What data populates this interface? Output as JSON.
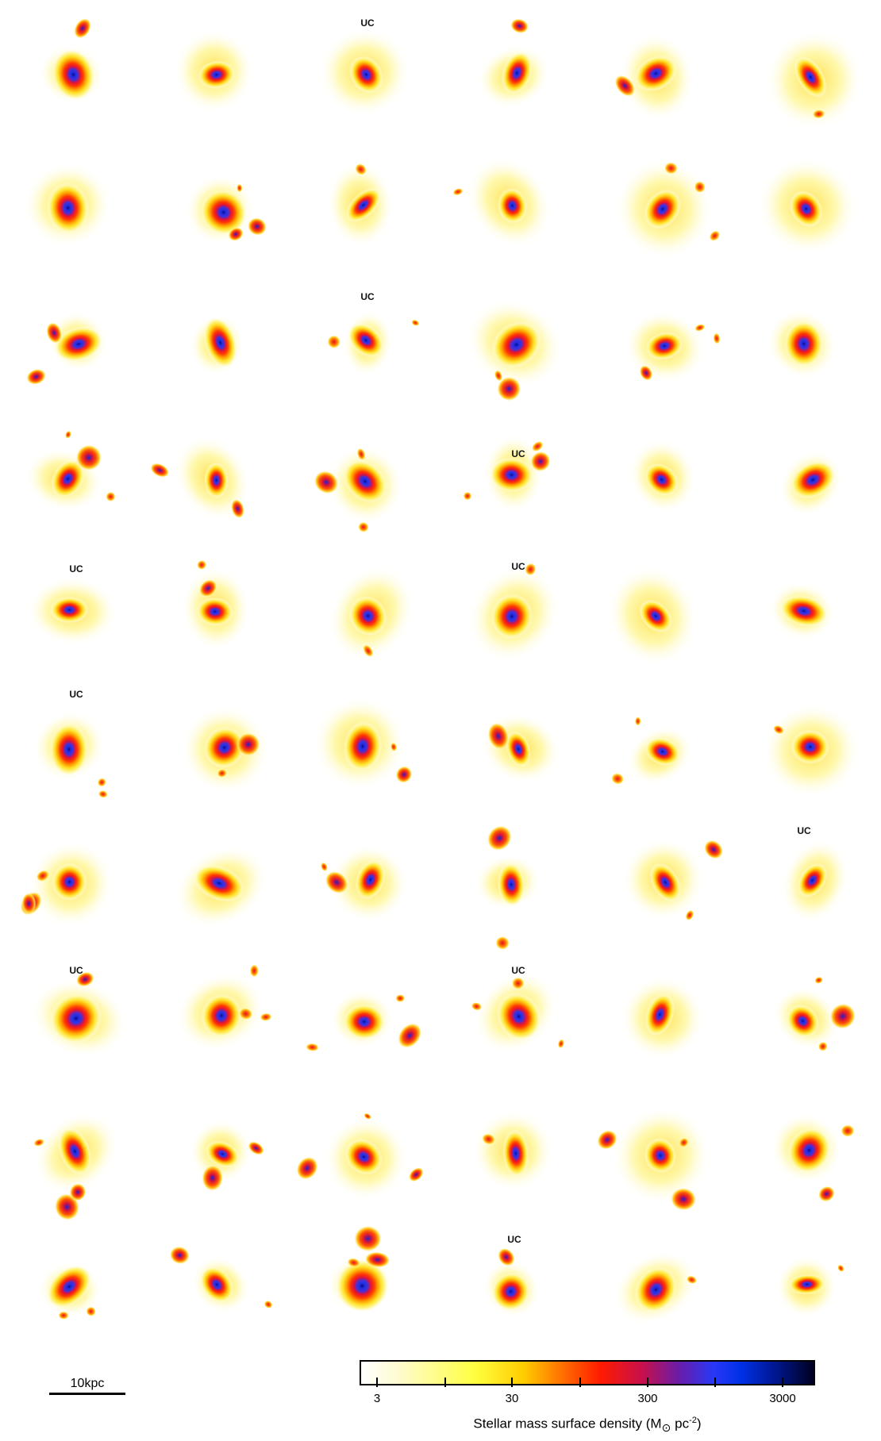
{
  "figure": {
    "uc_label": "UC",
    "scale_bar_label": "10kpc",
    "colorbar": {
      "ticks": [
        "3",
        "30",
        "300",
        "3000"
      ],
      "title_prefix": "Stellar mass surface density (M",
      "title_symbol": "⊙",
      "title_unit": " pc",
      "title_exponent": "-2",
      "title_suffix": ")",
      "colors": [
        "#ffffff",
        "#ffff40",
        "#ff6a00",
        "#ff1a00",
        "#6c1ca6",
        "#2838f8",
        "#001896",
        "#000020"
      ]
    },
    "grid": {
      "rows": 10,
      "cols": 6
    }
  }
}
